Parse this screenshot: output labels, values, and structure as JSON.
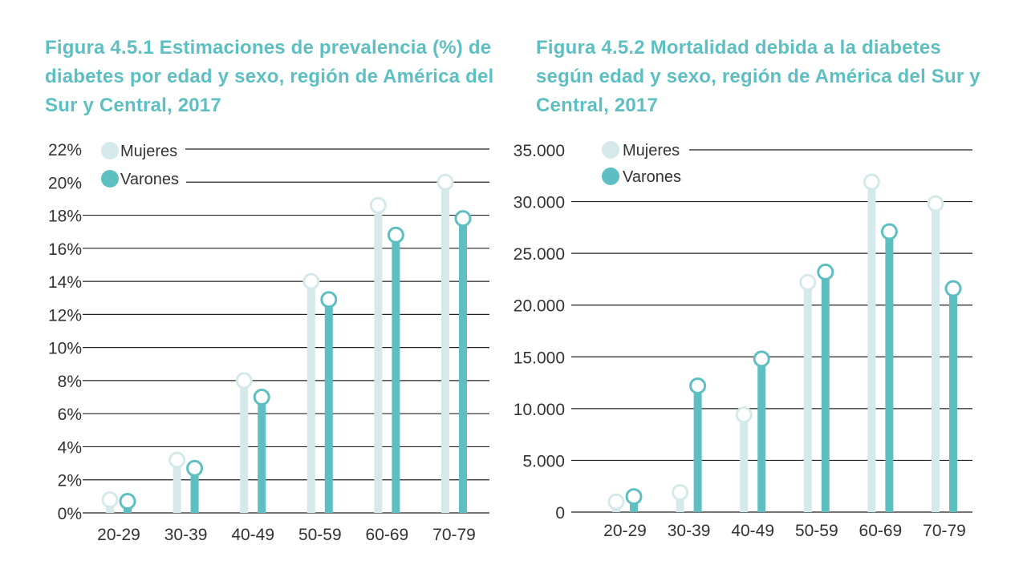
{
  "colors": {
    "mujeres": "#d5e9eb",
    "varones": "#5ebfc2",
    "title": "#5ebfc2",
    "axis_text": "#333333",
    "grid": "#222222"
  },
  "chart_data": [
    {
      "type": "bar",
      "title": "Figura 4.5.1 Estimaciones de prevalencia (%) de diabetes por edad y sexo, región de América del Sur y Central, 2017",
      "categories": [
        "20-29",
        "30-39",
        "40-49",
        "50-59",
        "60-69",
        "70-79"
      ],
      "series": [
        {
          "name": "Mujeres",
          "values": [
            0.8,
            3.2,
            8.0,
            14.0,
            18.6,
            20.0
          ]
        },
        {
          "name": "Varones",
          "values": [
            0.7,
            2.7,
            7.0,
            12.9,
            16.8,
            17.8
          ]
        }
      ],
      "yticks": [
        "0%",
        "2%",
        "4%",
        "6%",
        "8%",
        "10%",
        "12%",
        "14%",
        "16%",
        "18%",
        "20%",
        "22%"
      ],
      "ylim": [
        0,
        22
      ],
      "ystep": 2,
      "grid": true,
      "legend": "top-left",
      "xlabel": "",
      "ylabel": ""
    },
    {
      "type": "bar",
      "title": "Figura 4.5.2 Mortalidad debida a la diabetes según edad y sexo, región de América del Sur y Central, 2017",
      "categories": [
        "20-29",
        "30-39",
        "40-49",
        "50-59",
        "60-69",
        "70-79"
      ],
      "series": [
        {
          "name": "Mujeres",
          "values": [
            1000,
            1900,
            9400,
            22200,
            31900,
            29800
          ]
        },
        {
          "name": "Varones",
          "values": [
            1500,
            12200,
            14800,
            23200,
            27100,
            21600
          ]
        }
      ],
      "yticks": [
        "0",
        "5.000",
        "10.000",
        "15.000",
        "20.000",
        "25.000",
        "30.000",
        "35.000"
      ],
      "ylim": [
        0,
        35000
      ],
      "ystep": 5000,
      "grid": true,
      "legend": "top-left",
      "xlabel": "",
      "ylabel": ""
    }
  ]
}
